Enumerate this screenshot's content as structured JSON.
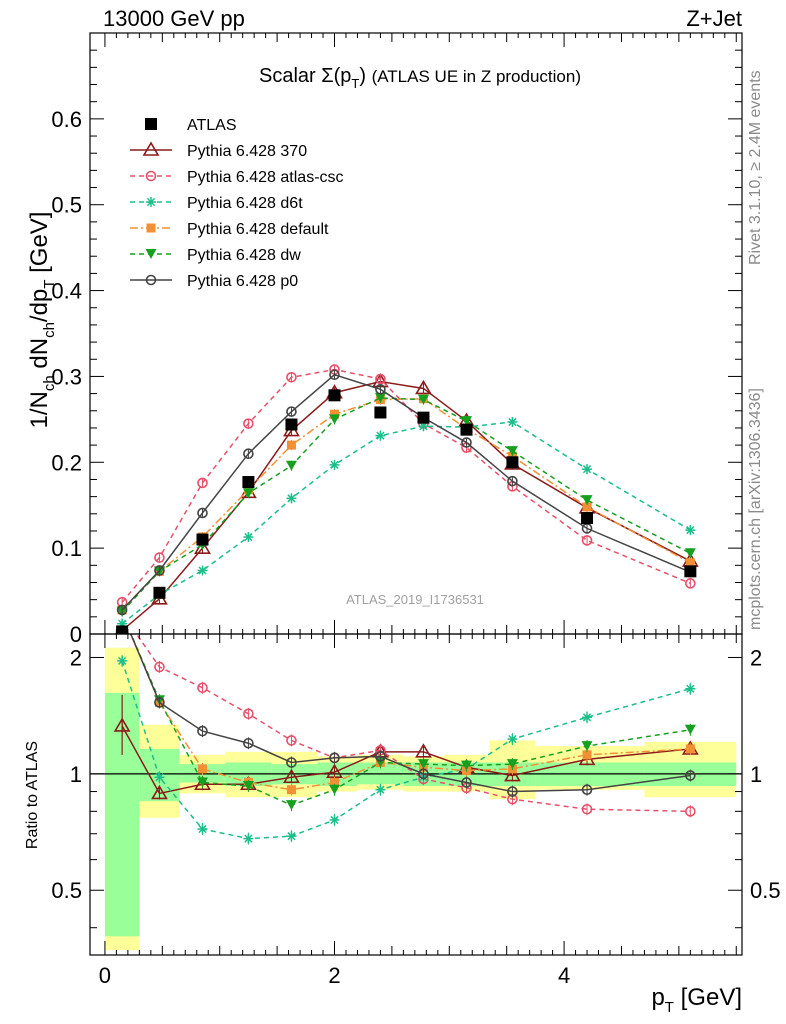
{
  "chart_data": {
    "type": "line",
    "header_left": "13000 GeV pp",
    "header_right": "Z+Jet",
    "title": "Scalar Σ(p_T) (ATLAS UE in Z production)",
    "ylabel": "1/N_ch dN_ch/dp_T [GeV]",
    "ratio_ylabel": "Ratio to ATLAS",
    "xlabel": "p_T [GeV]",
    "analysis_id": "ATLAS_2019_I1736531",
    "side_text_top": "Rivet 3.1.10, ≥ 2.4M events",
    "side_text_bottom": "mcplots.cern.ch [arXiv:1306.3436]",
    "xlim": [
      -0.13,
      5.55
    ],
    "ylim": [
      0,
      0.7
    ],
    "ratio_ylim": [
      0.34,
      2.3
    ],
    "x_ticks": [
      "0",
      "2",
      "4"
    ],
    "y_ticks": [
      "0",
      "0.1",
      "0.2",
      "0.3",
      "0.4",
      "0.5",
      "0.6"
    ],
    "ratio_y_ticks": [
      "0.5",
      "1",
      "2"
    ],
    "bin_edges": [
      0.0,
      0.3,
      0.65,
      1.05,
      1.45,
      1.85,
      2.2,
      2.6,
      2.95,
      3.35,
      3.75,
      4.7,
      5.5
    ],
    "x": [
      0.15,
      0.475,
      0.85,
      1.25,
      1.625,
      2.0,
      2.4,
      2.775,
      3.15,
      3.55,
      4.2,
      5.1
    ],
    "data": {
      "name": "ATLAS",
      "values": [
        0.003,
        0.048,
        0.11,
        0.177,
        0.244,
        0.278,
        0.258,
        0.252,
        0.238,
        0.2,
        0.135,
        0.073
      ],
      "ratio_band_stat": [
        [
          0.38,
          1.62
        ],
        [
          0.85,
          1.16
        ],
        [
          0.95,
          1.06
        ],
        [
          0.93,
          1.07
        ],
        [
          0.94,
          1.06
        ],
        [
          0.93,
          1.07
        ],
        [
          0.94,
          1.07
        ],
        [
          0.93,
          1.07
        ],
        [
          0.93,
          1.07
        ],
        [
          0.93,
          1.07
        ],
        [
          0.93,
          1.07
        ],
        [
          0.93,
          1.07
        ]
      ],
      "ratio_band_sys": [
        [
          0.35,
          2.12
        ],
        [
          0.77,
          1.34
        ],
        [
          0.89,
          1.12
        ],
        [
          0.87,
          1.14
        ],
        [
          0.87,
          1.14
        ],
        [
          0.9,
          1.11
        ],
        [
          0.91,
          1.12
        ],
        [
          0.9,
          1.11
        ],
        [
          0.9,
          1.12
        ],
        [
          0.86,
          1.22
        ],
        [
          0.91,
          1.18
        ],
        [
          0.87,
          1.21
        ]
      ]
    },
    "series": [
      {
        "name": "Pythia 6.428 370",
        "color": "#8b1a1a",
        "dash": "",
        "marker": "triangle-open",
        "values": [
          0.004,
          0.041,
          0.1,
          0.165,
          0.237,
          0.281,
          0.294,
          0.286,
          0.248,
          0.198,
          0.147,
          0.085
        ],
        "ratio": [
          1.33,
          0.89,
          0.94,
          0.94,
          0.98,
          1.01,
          1.14,
          1.14,
          1.04,
          0.99,
          1.09,
          1.16
        ]
      },
      {
        "name": "Pythia 6.428 atlas-csc",
        "color": "#e8506a",
        "dash": "5,4",
        "marker": "circle-open",
        "values": [
          0.037,
          0.089,
          0.176,
          0.245,
          0.299,
          0.308,
          0.297,
          0.245,
          0.217,
          0.172,
          0.109,
          0.059
        ],
        "ratio": [
          2.6,
          1.89,
          1.67,
          1.43,
          1.22,
          1.1,
          1.15,
          0.97,
          0.92,
          0.86,
          0.81,
          0.8
        ]
      },
      {
        "name": "Pythia 6.428 d6t",
        "color": "#1bbf8a",
        "dash": "5,4",
        "marker": "star",
        "values": [
          0.012,
          0.046,
          0.074,
          0.113,
          0.158,
          0.197,
          0.231,
          0.242,
          0.241,
          0.247,
          0.192,
          0.121
        ],
        "ratio": [
          1.96,
          0.98,
          0.72,
          0.68,
          0.69,
          0.76,
          0.91,
          0.98,
          1.03,
          1.23,
          1.4,
          1.66
        ]
      },
      {
        "name": "Pythia 6.428 default",
        "color": "#f39035",
        "dash": "8,3,2,3",
        "marker": "square",
        "values": [
          0.028,
          0.073,
          0.113,
          0.168,
          0.22,
          0.256,
          0.273,
          0.274,
          0.239,
          0.207,
          0.148,
          0.083
        ],
        "ratio": [
          2.6,
          1.53,
          1.03,
          0.95,
          0.91,
          0.95,
          1.07,
          1.04,
          1.02,
          1.03,
          1.12,
          1.16
        ]
      },
      {
        "name": "Pythia 6.428 dw",
        "color": "#15a11f",
        "dash": "5,4",
        "marker": "triangle-down",
        "values": [
          0.026,
          0.073,
          0.104,
          0.164,
          0.196,
          0.25,
          0.275,
          0.273,
          0.248,
          0.213,
          0.156,
          0.094
        ],
        "ratio": [
          2.6,
          1.55,
          0.95,
          0.93,
          0.83,
          0.91,
          1.07,
          1.06,
          1.05,
          1.06,
          1.18,
          1.3
        ]
      },
      {
        "name": "Pythia 6.428 p0",
        "color": "#444444",
        "dash": "",
        "marker": "circle-open",
        "values": [
          0.028,
          0.074,
          0.141,
          0.21,
          0.259,
          0.302,
          0.285,
          0.252,
          0.223,
          0.178,
          0.123,
          0.072
        ],
        "ratio": [
          2.6,
          1.53,
          1.29,
          1.2,
          1.07,
          1.1,
          1.11,
          1.0,
          0.95,
          0.9,
          0.91,
          0.99
        ]
      }
    ]
  }
}
